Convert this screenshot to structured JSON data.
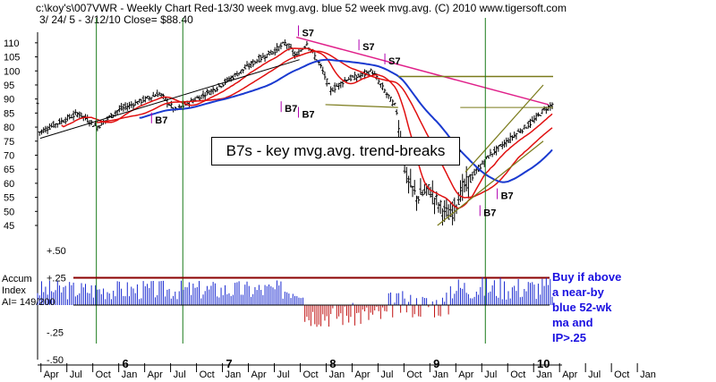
{
  "header": {
    "line1": "c:\\koy's\\007VWR  - Weekly Chart  Red-13/30 week mvg.avg.  blue 52 week mvg.avg.  (C) 2010 www.tigersoft.com",
    "line2": "3/ 24/ 5 - 3/12/10    Close= $88.40"
  },
  "banner": "B7s - key mvg.avg. trend-breaks",
  "note": [
    "Buy if above",
    "a near-by",
    "blue 52-wk",
    "ma and",
    "IP>.25"
  ],
  "accum_label": [
    "Accum",
    "Index",
    "AI= 149/200"
  ],
  "colors": {
    "price_bars": "#000000",
    "ma13": "#e01010",
    "ma30": "#e01010",
    "ma52": "#1a3ad0",
    "trend_magenta": "#e0208a",
    "trend_olive": "#7a7a1a",
    "signal_lines": "#1a7a1a",
    "accum_pos": "#1a2ad0",
    "accum_neg": "#c01010",
    "accum_threshold": "#8b0000",
    "note_text": "#1a10e0"
  },
  "chart_data": [
    {
      "type": "ohlc",
      "title": "",
      "ylabel": "",
      "ylim": [
        45,
        115
      ],
      "yticks": [
        45,
        50,
        55,
        60,
        65,
        70,
        75,
        80,
        85,
        90,
        95,
        100,
        105,
        110
      ],
      "x_month_labels": [
        "Apr",
        "Jul",
        "Oct",
        "Jan",
        "Apr",
        "Jul",
        "Oct",
        "Jan",
        "Apr",
        "Jul",
        "Oct",
        "Jan",
        "Apr",
        "Jul",
        "Oct",
        "Jan",
        "Apr",
        "Jul",
        "Oct",
        "Jan",
        "Apr",
        "Jul",
        "Oct",
        "Jan"
      ],
      "x_year_labels": [
        "6",
        "7",
        "8",
        "9",
        "10"
      ],
      "series": [
        {
          "name": "Red-13 week mvg.avg.",
          "role": "ma13"
        },
        {
          "name": "30 week mvg.avg.",
          "role": "ma30"
        },
        {
          "name": "blue 52 week mvg.avg.",
          "role": "ma52"
        }
      ],
      "last_close": 88.4,
      "signals": [
        {
          "label": "B7",
          "date": "2006-05"
        },
        {
          "label": "B7",
          "date": "2007-08"
        },
        {
          "label": "B7",
          "date": "2007-10"
        },
        {
          "label": "S7",
          "date": "2007-10"
        },
        {
          "label": "S7",
          "date": "2008-05"
        },
        {
          "label": "S7",
          "date": "2008-08"
        },
        {
          "label": "S7",
          "date": "2009-03"
        },
        {
          "label": "B7",
          "date": "2009-07"
        },
        {
          "label": "B7",
          "date": "2009-09"
        }
      ],
      "vertical_markers": [
        "2005-10",
        "2006-08",
        "2009-07"
      ]
    },
    {
      "type": "bar",
      "title": "Accum Index",
      "yticks": [
        0.5,
        0.25,
        -0.25,
        -0.5
      ],
      "ytick_labels": [
        "+.50",
        "+.25",
        "-.25",
        "-.50"
      ],
      "ylim": [
        -0.5,
        0.5
      ],
      "threshold": 0.25
    }
  ]
}
